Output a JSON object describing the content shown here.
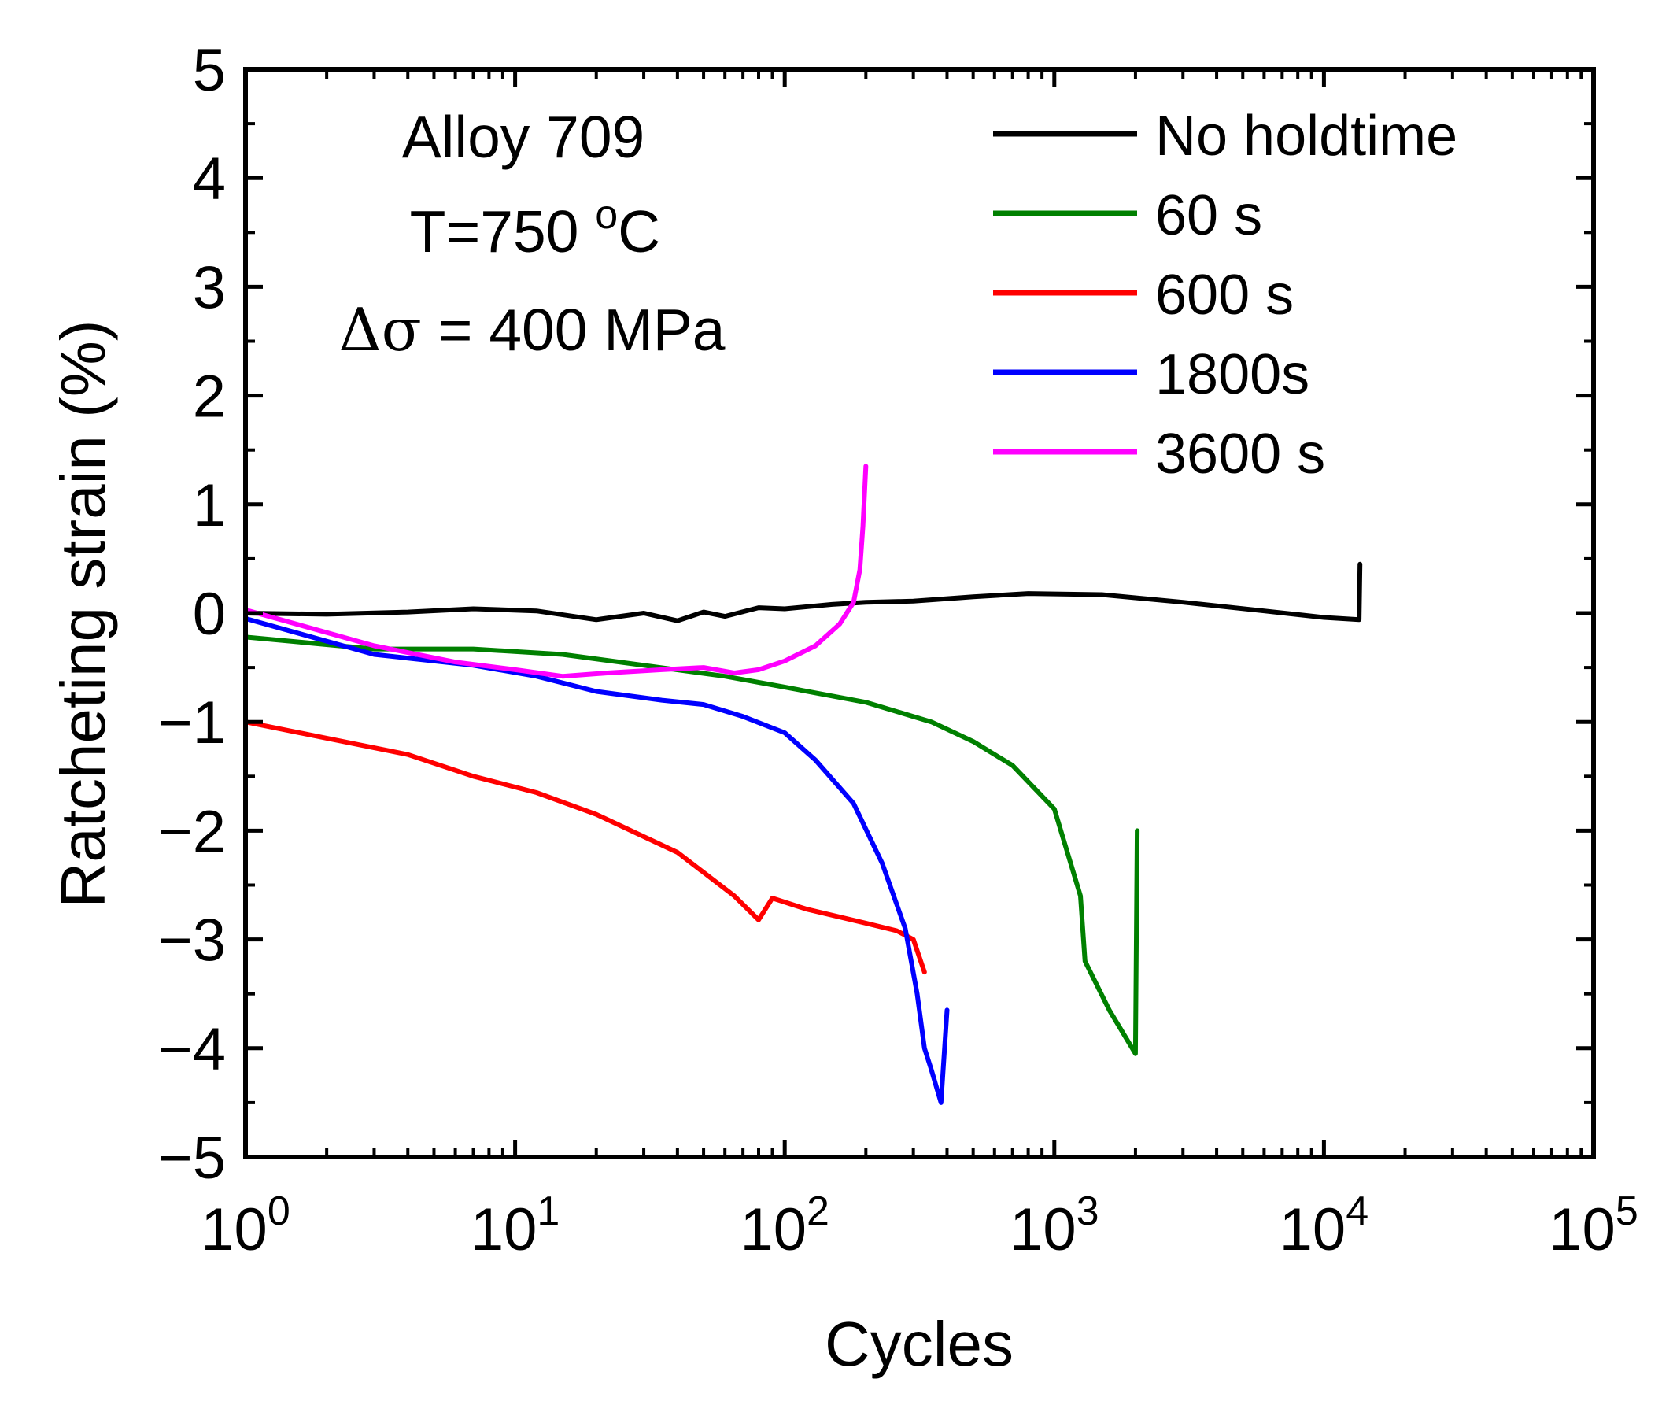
{
  "chart_data": {
    "type": "line",
    "xscale": "log",
    "xlabel": "Cycles",
    "ylabel": "Ratcheting strain (%)",
    "xlim": [
      1,
      100000
    ],
    "ylim": [
      -5,
      5
    ],
    "yticks": [
      5,
      4,
      3,
      2,
      1,
      0,
      -1,
      -2,
      -3,
      -4,
      -5
    ],
    "ytick_labels": [
      "5",
      "4",
      "3",
      "2",
      "1",
      "0",
      "−1",
      "−2",
      "−3",
      "−4",
      "−5"
    ],
    "xticks": [
      {
        "base": "10",
        "exp": "0",
        "value": 1
      },
      {
        "base": "10",
        "exp": "1",
        "value": 10
      },
      {
        "base": "10",
        "exp": "2",
        "value": 100
      },
      {
        "base": "10",
        "exp": "3",
        "value": 1000
      },
      {
        "base": "10",
        "exp": "4",
        "value": 10000
      },
      {
        "base": "10",
        "exp": "5",
        "value": 100000
      }
    ],
    "annotation": {
      "line1": "Alloy 709",
      "line2_prefix": "T=750 ",
      "line2_sup": "o",
      "line2_suffix": "C",
      "line3_symbol": "Δσ",
      "line3_rest": " = 400 MPa"
    },
    "legend_position": "top-right",
    "series": [
      {
        "name": "No holdtime",
        "color": "#000000",
        "points": [
          [
            1,
            0
          ],
          [
            2,
            -0.01
          ],
          [
            4,
            0.01
          ],
          [
            7,
            0.04
          ],
          [
            12,
            0.02
          ],
          [
            20,
            -0.06
          ],
          [
            30,
            0
          ],
          [
            40,
            -0.07
          ],
          [
            50,
            0.01
          ],
          [
            60,
            -0.03
          ],
          [
            80,
            0.05
          ],
          [
            100,
            0.04
          ],
          [
            150,
            0.08
          ],
          [
            200,
            0.1
          ],
          [
            300,
            0.11
          ],
          [
            500,
            0.15
          ],
          [
            800,
            0.18
          ],
          [
            1500,
            0.17
          ],
          [
            3000,
            0.1
          ],
          [
            6000,
            0.02
          ],
          [
            10000,
            -0.04
          ],
          [
            13500,
            -0.06
          ],
          [
            13600,
            0.45
          ]
        ]
      },
      {
        "name": "60 s",
        "color": "#008000",
        "points": [
          [
            1,
            -0.22
          ],
          [
            3,
            -0.33
          ],
          [
            7,
            -0.33
          ],
          [
            15,
            -0.38
          ],
          [
            30,
            -0.48
          ],
          [
            60,
            -0.58
          ],
          [
            100,
            -0.68
          ],
          [
            200,
            -0.82
          ],
          [
            350,
            -1.0
          ],
          [
            500,
            -1.18
          ],
          [
            700,
            -1.4
          ],
          [
            1000,
            -1.8
          ],
          [
            1250,
            -2.6
          ],
          [
            1300,
            -3.2
          ],
          [
            1600,
            -3.65
          ],
          [
            2000,
            -4.05
          ],
          [
            2030,
            -2.0
          ]
        ]
      },
      {
        "name": "600 s",
        "color": "#ff0000",
        "points": [
          [
            1,
            -1.0
          ],
          [
            2,
            -1.15
          ],
          [
            4,
            -1.3
          ],
          [
            7,
            -1.5
          ],
          [
            12,
            -1.65
          ],
          [
            20,
            -1.85
          ],
          [
            40,
            -2.2
          ],
          [
            65,
            -2.6
          ],
          [
            80,
            -2.82
          ],
          [
            90,
            -2.62
          ],
          [
            120,
            -2.72
          ],
          [
            200,
            -2.85
          ],
          [
            260,
            -2.92
          ],
          [
            300,
            -3.0
          ],
          [
            330,
            -3.3
          ]
        ]
      },
      {
        "name": "1800s",
        "color": "#0000ff",
        "points": [
          [
            1,
            -0.05
          ],
          [
            3,
            -0.38
          ],
          [
            7,
            -0.48
          ],
          [
            12,
            -0.58
          ],
          [
            20,
            -0.72
          ],
          [
            35,
            -0.8
          ],
          [
            50,
            -0.84
          ],
          [
            70,
            -0.95
          ],
          [
            100,
            -1.1
          ],
          [
            130,
            -1.35
          ],
          [
            180,
            -1.75
          ],
          [
            230,
            -2.3
          ],
          [
            280,
            -2.9
          ],
          [
            310,
            -3.5
          ],
          [
            330,
            -4.0
          ],
          [
            350,
            -4.2
          ],
          [
            380,
            -4.5
          ],
          [
            400,
            -3.65
          ]
        ]
      },
      {
        "name": "3600 s",
        "color": "#ff00ff",
        "points": [
          [
            1,
            0.03
          ],
          [
            3,
            -0.3
          ],
          [
            6,
            -0.45
          ],
          [
            10,
            -0.52
          ],
          [
            15,
            -0.58
          ],
          [
            22,
            -0.55
          ],
          [
            35,
            -0.52
          ],
          [
            50,
            -0.5
          ],
          [
            65,
            -0.55
          ],
          [
            80,
            -0.52
          ],
          [
            100,
            -0.44
          ],
          [
            130,
            -0.3
          ],
          [
            160,
            -0.1
          ],
          [
            180,
            0.1
          ],
          [
            190,
            0.4
          ],
          [
            195,
            0.8
          ],
          [
            200,
            1.35
          ]
        ]
      }
    ]
  }
}
